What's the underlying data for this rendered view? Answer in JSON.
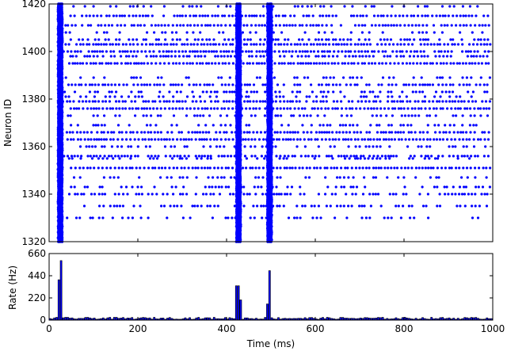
{
  "chart_data": [
    {
      "type": "scatter",
      "panel": "raster",
      "xlabel": "",
      "ylabel": "Neuron ID",
      "xlim": [
        0,
        1000
      ],
      "ylim": [
        1320,
        1420
      ],
      "x_ticks": [
        0,
        200,
        400,
        600,
        800,
        1000
      ],
      "y_ticks": [
        1320,
        1340,
        1360,
        1380,
        1400,
        1420
      ],
      "y_tick_labels": [
        "1320",
        "1340",
        "1360",
        "1380",
        "1400",
        "1420"
      ],
      "marker_color": "#0000ff",
      "marker": "dot",
      "synchronous_events_ms": [
        25,
        427,
        497
      ],
      "background_spiking_rows": [
        1330,
        1335,
        1340,
        1343,
        1347,
        1351,
        1355,
        1356,
        1360,
        1363,
        1366,
        1369,
        1373,
        1376,
        1379,
        1381,
        1383,
        1386,
        1389,
        1395,
        1398,
        1400,
        1403,
        1405,
        1408,
        1411,
        1415,
        1419
      ]
    },
    {
      "type": "bar",
      "panel": "population-rate",
      "xlabel": "Time (ms)",
      "ylabel": "Rate (Hz)",
      "xlim": [
        0,
        1000
      ],
      "ylim": [
        0,
        660
      ],
      "x_ticks": [
        0,
        200,
        400,
        600,
        800,
        1000
      ],
      "x_tick_labels": [
        "0",
        "200",
        "400",
        "600",
        "800",
        "1000"
      ],
      "y_ticks": [
        0,
        220,
        440,
        660
      ],
      "y_tick_labels": [
        "0",
        "220",
        "440",
        "660"
      ],
      "bin_width_ms": 5,
      "bar_color": "#0000ff",
      "bar_edge_color": "#000000",
      "baseline_rate_hz": 18,
      "peaks": [
        {
          "x": 20,
          "value": 400
        },
        {
          "x": 25,
          "value": 590
        },
        {
          "x": 420,
          "value": 340
        },
        {
          "x": 425,
          "value": 340
        },
        {
          "x": 430,
          "value": 200
        },
        {
          "x": 490,
          "value": 160
        },
        {
          "x": 495,
          "value": 490
        }
      ]
    }
  ]
}
